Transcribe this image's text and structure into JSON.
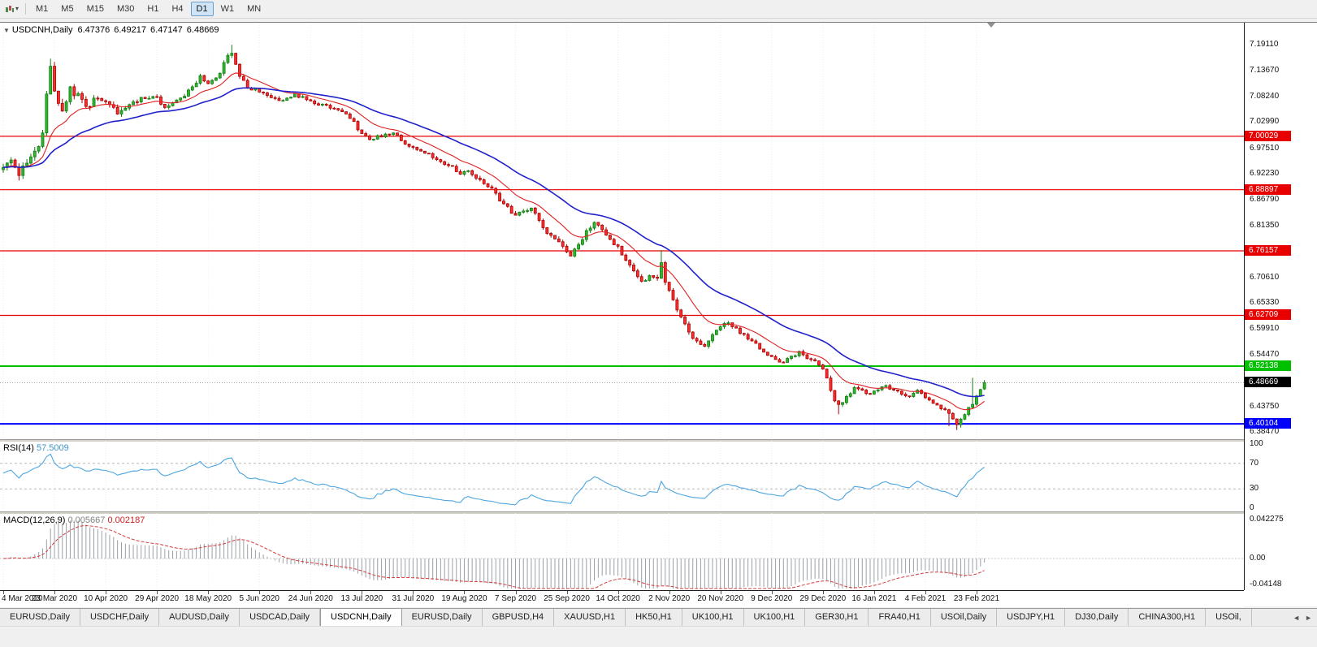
{
  "toolbar": {
    "timeframes": [
      "M1",
      "M5",
      "M15",
      "M30",
      "H1",
      "H4",
      "D1",
      "W1",
      "MN"
    ],
    "active_timeframe": "D1",
    "icons": {
      "chart_type_dropdown": "▾"
    }
  },
  "chart_header": {
    "collapse_icon": "▼",
    "symbol": "USDCNH,Daily",
    "open": "6.47376",
    "high": "6.49217",
    "low": "6.47147",
    "close": "6.48669"
  },
  "rsi_header": {
    "name": "RSI(14)",
    "value": "57.5009"
  },
  "macd_header": {
    "name": "MACD(12,26,9)",
    "main": "0.005667",
    "signal": "0.002187"
  },
  "tabs": {
    "items": [
      "EURUSD,Daily",
      "USDCHF,Daily",
      "AUDUSD,Daily",
      "USDCAD,Daily",
      "USDCNH,Daily",
      "EURUSD,Daily",
      "GBPUSD,H4",
      "XAUUSD,H1",
      "HK50,H1",
      "UK100,H1",
      "UK100,H1",
      "GER30,H1",
      "FRA40,H1",
      "USOil,Daily",
      "USDJPY,H1",
      "DJ30,Daily",
      "CHINA300,H1",
      "USOil,"
    ],
    "active_index": 4,
    "scroll_left": "◄",
    "scroll_right": "►"
  },
  "colors": {
    "up_fill": "#2eb82e",
    "up_stroke": "#157a15",
    "down_fill": "#ff2e2e",
    "down_stroke": "#a80000",
    "ma_fast": "#e02020",
    "ma_slow": "#2121cc",
    "resistance": "#e80000",
    "support_green": "#00c000",
    "support_blue": "#0000ff",
    "last_price_bg": "#000000",
    "rsi_line": "#4da6e0",
    "rsi_level": "#b8b8b8",
    "macd_hist": "#9aa0a6",
    "macd_signal": "#d23b3b",
    "grid": "#ededed"
  },
  "chart_data": {
    "type": "candlestick",
    "symbol": "USDCNH",
    "timeframe": "Daily",
    "last": {
      "open": 6.47376,
      "high": 6.49217,
      "low": 6.47147,
      "close": 6.48669
    },
    "last_price_label": "6.48669",
    "price_range": {
      "min": 6.369,
      "max": 7.237
    },
    "y_axis_ticks": [
      "7.19110",
      "7.13670",
      "7.08240",
      "7.02990",
      "6.97510",
      "6.92230",
      "6.86790",
      "6.81350",
      "6.70610",
      "6.65330",
      "6.59910",
      "6.54470",
      "6.43750",
      "6.38470"
    ],
    "levels": [
      {
        "value": 7.00029,
        "label": "7.00029",
        "kind": "resistance"
      },
      {
        "value": 6.88897,
        "label": "6.88897",
        "kind": "resistance"
      },
      {
        "value": 6.76157,
        "label": "6.76157",
        "kind": "resistance"
      },
      {
        "value": 6.62709,
        "label": "6.62709",
        "kind": "resistance"
      },
      {
        "value": 6.52138,
        "label": "6.52138",
        "kind": "support-green"
      },
      {
        "value": 6.40104,
        "label": "6.40104",
        "kind": "support-blue"
      }
    ],
    "time_axis": [
      "4 Mar 2020",
      "23 Mar 2020",
      "10 Apr 2020",
      "29 Apr 2020",
      "18 May 2020",
      "5 Jun 2020",
      "24 Jun 2020",
      "13 Jul 2020",
      "31 Jul 2020",
      "19 Aug 2020",
      "7 Sep 2020",
      "25 Sep 2020",
      "14 Oct 2020",
      "2 Nov 2020",
      "20 Nov 2020",
      "9 Dec 2020",
      "29 Dec 2020",
      "16 Jan 2021",
      "4 Feb 2021",
      "23 Feb 2021"
    ],
    "candles_per_tick": 13,
    "candle_count": 250,
    "price_anchors": [
      [
        0,
        6.935
      ],
      [
        2,
        6.952
      ],
      [
        4,
        6.922
      ],
      [
        6,
        6.944
      ],
      [
        8,
        6.962
      ],
      [
        10,
        7.005
      ],
      [
        11,
        7.085
      ],
      [
        12,
        7.148
      ],
      [
        13,
        7.095
      ],
      [
        15,
        7.048
      ],
      [
        17,
        7.098
      ],
      [
        19,
        7.082
      ],
      [
        21,
        7.058
      ],
      [
        23,
        7.076
      ],
      [
        26,
        7.068
      ],
      [
        29,
        7.05
      ],
      [
        32,
        7.066
      ],
      [
        35,
        7.078
      ],
      [
        38,
        7.086
      ],
      [
        41,
        7.062
      ],
      [
        44,
        7.072
      ],
      [
        47,
        7.096
      ],
      [
        50,
        7.124
      ],
      [
        52,
        7.108
      ],
      [
        55,
        7.136
      ],
      [
        57,
        7.165
      ],
      [
        58,
        7.176
      ],
      [
        60,
        7.128
      ],
      [
        62,
        7.104
      ],
      [
        65,
        7.092
      ],
      [
        68,
        7.08
      ],
      [
        71,
        7.072
      ],
      [
        74,
        7.088
      ],
      [
        77,
        7.078
      ],
      [
        80,
        7.068
      ],
      [
        83,
        7.062
      ],
      [
        86,
        7.054
      ],
      [
        89,
        7.028
      ],
      [
        91,
        7.004
      ],
      [
        93,
        6.994
      ],
      [
        96,
        7.002
      ],
      [
        99,
        7.008
      ],
      [
        101,
        6.992
      ],
      [
        104,
        6.976
      ],
      [
        107,
        6.968
      ],
      [
        110,
        6.95
      ],
      [
        113,
        6.94
      ],
      [
        116,
        6.924
      ],
      [
        118,
        6.93
      ],
      [
        121,
        6.906
      ],
      [
        124,
        6.892
      ],
      [
        126,
        6.868
      ],
      [
        128,
        6.85
      ],
      [
        130,
        6.838
      ],
      [
        132,
        6.842
      ],
      [
        134,
        6.854
      ],
      [
        136,
        6.826
      ],
      [
        138,
        6.8
      ],
      [
        140,
        6.786
      ],
      [
        142,
        6.77
      ],
      [
        144,
        6.754
      ],
      [
        146,
        6.772
      ],
      [
        148,
        6.802
      ],
      [
        150,
        6.82
      ],
      [
        152,
        6.806
      ],
      [
        154,
        6.784
      ],
      [
        156,
        6.768
      ],
      [
        158,
        6.744
      ],
      [
        160,
        6.716
      ],
      [
        162,
        6.698
      ],
      [
        164,
        6.706
      ],
      [
        166,
        6.7
      ],
      [
        167,
        6.742
      ],
      [
        168,
        6.694
      ],
      [
        170,
        6.66
      ],
      [
        172,
        6.626
      ],
      [
        174,
        6.594
      ],
      [
        176,
        6.57
      ],
      [
        178,
        6.562
      ],
      [
        180,
        6.59
      ],
      [
        182,
        6.602
      ],
      [
        184,
        6.612
      ],
      [
        186,
        6.6
      ],
      [
        188,
        6.584
      ],
      [
        190,
        6.576
      ],
      [
        192,
        6.558
      ],
      [
        194,
        6.546
      ],
      [
        196,
        6.536
      ],
      [
        198,
        6.528
      ],
      [
        200,
        6.542
      ],
      [
        202,
        6.55
      ],
      [
        204,
        6.54
      ],
      [
        206,
        6.53
      ],
      [
        208,
        6.518
      ],
      [
        209,
        6.496
      ],
      [
        211,
        6.452
      ],
      [
        212,
        6.438
      ],
      [
        214,
        6.458
      ],
      [
        216,
        6.476
      ],
      [
        218,
        6.47
      ],
      [
        220,
        6.464
      ],
      [
        222,
        6.472
      ],
      [
        224,
        6.48
      ],
      [
        226,
        6.472
      ],
      [
        228,
        6.462
      ],
      [
        230,
        6.456
      ],
      [
        232,
        6.468
      ],
      [
        234,
        6.458
      ],
      [
        236,
        6.446
      ],
      [
        238,
        6.434
      ],
      [
        240,
        6.42
      ],
      [
        241,
        6.408
      ],
      [
        242,
        6.402
      ],
      [
        243,
        6.41
      ],
      [
        244,
        6.422
      ],
      [
        246,
        6.444
      ],
      [
        247,
        6.458
      ],
      [
        248,
        6.474
      ],
      [
        249,
        6.487
      ]
    ],
    "wick_overrides": [
      [
        12,
        "h",
        7.162
      ],
      [
        58,
        "h",
        7.191
      ],
      [
        167,
        "h",
        6.763
      ],
      [
        212,
        "l",
        6.421
      ],
      [
        240,
        "l",
        6.396
      ],
      [
        242,
        "l",
        6.388
      ],
      [
        243,
        "l",
        6.393
      ],
      [
        246,
        "h",
        6.497
      ]
    ],
    "volatility_anchors": [
      [
        0,
        0.02
      ],
      [
        14,
        0.022
      ],
      [
        30,
        0.013
      ],
      [
        50,
        0.012
      ],
      [
        58,
        0.013
      ],
      [
        70,
        0.009
      ],
      [
        100,
        0.0085
      ],
      [
        130,
        0.011
      ],
      [
        150,
        0.011
      ],
      [
        170,
        0.013
      ],
      [
        185,
        0.009
      ],
      [
        205,
        0.009
      ],
      [
        212,
        0.011
      ],
      [
        225,
        0.007
      ],
      [
        240,
        0.009
      ],
      [
        249,
        0.006
      ]
    ],
    "moving_averages": [
      {
        "name": "fast",
        "period": 13,
        "method": "ema"
      },
      {
        "name": "slow",
        "period": 34,
        "method": "ema"
      }
    ],
    "indicators": {
      "rsi": {
        "period": 14,
        "value": 57.5009,
        "axis": [
          "100",
          "70",
          "30",
          "0"
        ],
        "levels": [
          70,
          30
        ]
      },
      "macd": {
        "fast": 12,
        "slow": 26,
        "signal": 9,
        "main_value": 0.005667,
        "signal_value": 0.002187,
        "axis": {
          "top": "0.042275",
          "zero": "0.00",
          "bottom": "-0.04148"
        }
      }
    }
  }
}
